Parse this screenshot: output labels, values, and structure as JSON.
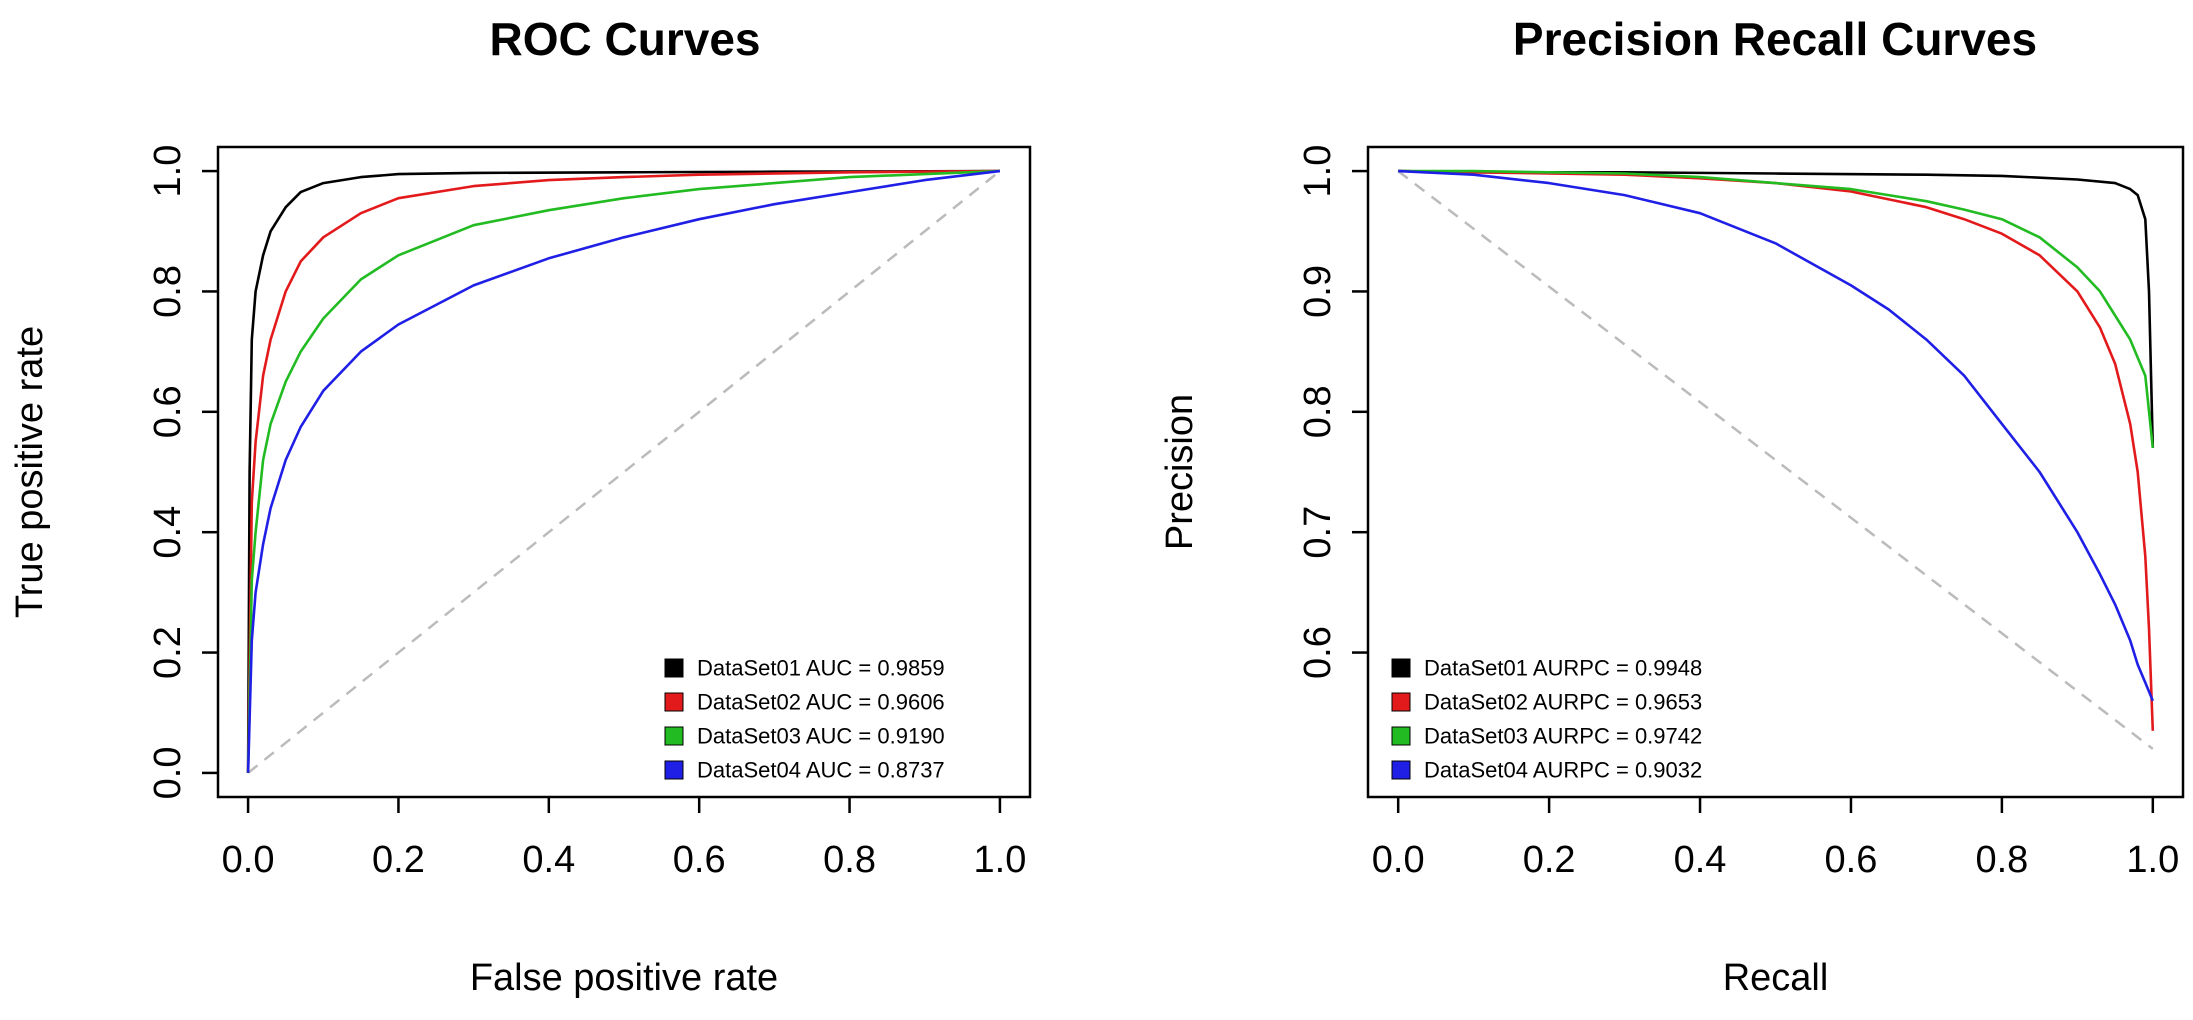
{
  "chart_data": [
    {
      "type": "line",
      "title": "ROC Curves",
      "xlabel": "False positive rate",
      "ylabel": "True positive rate",
      "xlim": [
        0,
        1
      ],
      "ylim": [
        0,
        1
      ],
      "xticks": [
        "0.0",
        "0.2",
        "0.4",
        "0.6",
        "0.8",
        "1.0"
      ],
      "yticks": [
        "0.0",
        "0.2",
        "0.4",
        "0.6",
        "0.8",
        "1.0"
      ],
      "legend_position": "bottom-right",
      "reference_line": {
        "x": [
          0,
          1
        ],
        "y": [
          0,
          1
        ],
        "color": "#bbbbbb",
        "style": "dashed"
      },
      "series": [
        {
          "name": "DataSet01 AUC = 0.9859",
          "color": "#000000",
          "x": [
            0,
            0.002,
            0.005,
            0.01,
            0.02,
            0.03,
            0.05,
            0.07,
            0.1,
            0.15,
            0.2,
            0.3,
            0.5,
            0.7,
            1.0
          ],
          "y": [
            0,
            0.5,
            0.72,
            0.8,
            0.86,
            0.9,
            0.94,
            0.965,
            0.98,
            0.99,
            0.995,
            0.997,
            0.998,
            0.999,
            1.0
          ]
        },
        {
          "name": "DataSet02 AUC = 0.9606",
          "color": "#e31a1c",
          "x": [
            0,
            0.005,
            0.01,
            0.02,
            0.03,
            0.05,
            0.07,
            0.1,
            0.15,
            0.2,
            0.3,
            0.4,
            0.5,
            0.6,
            0.8,
            1.0
          ],
          "y": [
            0,
            0.45,
            0.55,
            0.66,
            0.72,
            0.8,
            0.85,
            0.89,
            0.93,
            0.955,
            0.975,
            0.985,
            0.99,
            0.994,
            0.998,
            1.0
          ]
        },
        {
          "name": "DataSet03 AUC = 0.9190",
          "color": "#22bb22",
          "x": [
            0,
            0.005,
            0.01,
            0.02,
            0.03,
            0.05,
            0.07,
            0.1,
            0.15,
            0.2,
            0.3,
            0.4,
            0.5,
            0.6,
            0.7,
            0.8,
            0.9,
            1.0
          ],
          "y": [
            0,
            0.32,
            0.4,
            0.52,
            0.58,
            0.65,
            0.7,
            0.755,
            0.82,
            0.86,
            0.91,
            0.935,
            0.955,
            0.97,
            0.98,
            0.99,
            0.995,
            1.0
          ]
        },
        {
          "name": "DataSet04 AUC = 0.8737",
          "color": "#1f1fe6",
          "x": [
            0,
            0.005,
            0.01,
            0.02,
            0.03,
            0.05,
            0.07,
            0.1,
            0.15,
            0.2,
            0.3,
            0.4,
            0.5,
            0.6,
            0.7,
            0.8,
            0.9,
            1.0
          ],
          "y": [
            0,
            0.22,
            0.3,
            0.38,
            0.44,
            0.52,
            0.575,
            0.635,
            0.7,
            0.745,
            0.81,
            0.855,
            0.89,
            0.92,
            0.945,
            0.965,
            0.985,
            1.0
          ]
        }
      ]
    },
    {
      "type": "line",
      "title": "Precision Recall Curves",
      "xlabel": "Recall",
      "ylabel": "Precision",
      "xlim": [
        0,
        1
      ],
      "ylim": [
        0.5,
        1
      ],
      "xticks": [
        "0.0",
        "0.2",
        "0.4",
        "0.6",
        "0.8",
        "1.0"
      ],
      "yticks": [
        "0.6",
        "0.7",
        "0.8",
        "0.9",
        "1.0"
      ],
      "legend_position": "bottom-left",
      "reference_line": {
        "x": [
          0,
          1
        ],
        "y": [
          1,
          0.52
        ],
        "color": "#bbbbbb",
        "style": "dashed"
      },
      "series": [
        {
          "name": "DataSet01 AURPC = 0.9948",
          "color": "#000000",
          "x": [
            0,
            0.1,
            0.3,
            0.5,
            0.7,
            0.8,
            0.9,
            0.95,
            0.97,
            0.98,
            0.99,
            0.995,
            1.0
          ],
          "y": [
            1.0,
            0.999,
            0.999,
            0.998,
            0.997,
            0.996,
            0.993,
            0.99,
            0.985,
            0.98,
            0.96,
            0.9,
            0.77
          ]
        },
        {
          "name": "DataSet02 AURPC = 0.9653",
          "color": "#e31a1c",
          "x": [
            0,
            0.1,
            0.2,
            0.3,
            0.4,
            0.5,
            0.6,
            0.7,
            0.75,
            0.8,
            0.85,
            0.9,
            0.93,
            0.95,
            0.97,
            0.98,
            0.99,
            0.995,
            1.0
          ],
          "y": [
            1.0,
            0.999,
            0.998,
            0.997,
            0.994,
            0.99,
            0.983,
            0.97,
            0.96,
            0.948,
            0.93,
            0.9,
            0.87,
            0.84,
            0.79,
            0.75,
            0.68,
            0.62,
            0.535
          ]
        },
        {
          "name": "DataSet03 AURPC = 0.9742",
          "color": "#22bb22",
          "x": [
            0,
            0.1,
            0.2,
            0.3,
            0.4,
            0.5,
            0.6,
            0.7,
            0.75,
            0.8,
            0.85,
            0.9,
            0.93,
            0.95,
            0.97,
            0.98,
            0.99,
            1.0
          ],
          "y": [
            1.0,
            1.0,
            0.999,
            0.998,
            0.995,
            0.99,
            0.985,
            0.975,
            0.968,
            0.96,
            0.945,
            0.92,
            0.9,
            0.88,
            0.86,
            0.845,
            0.83,
            0.77
          ]
        },
        {
          "name": "DataSet04 AURPC = 0.9032",
          "color": "#1f1fe6",
          "x": [
            0,
            0.1,
            0.2,
            0.3,
            0.4,
            0.5,
            0.6,
            0.65,
            0.7,
            0.75,
            0.8,
            0.85,
            0.9,
            0.93,
            0.95,
            0.97,
            0.98,
            0.99,
            1.0
          ],
          "y": [
            1.0,
            0.997,
            0.99,
            0.98,
            0.965,
            0.94,
            0.905,
            0.885,
            0.86,
            0.83,
            0.79,
            0.75,
            0.7,
            0.665,
            0.64,
            0.61,
            0.59,
            0.575,
            0.56
          ]
        }
      ]
    }
  ]
}
